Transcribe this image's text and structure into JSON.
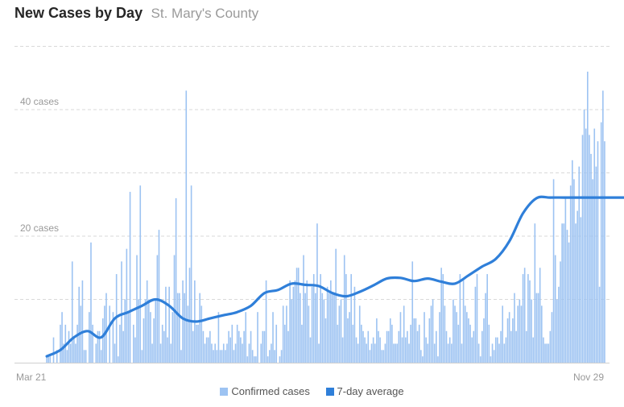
{
  "header": {
    "title": "New Cases by Day",
    "subtitle": "St. Mary's County"
  },
  "colors": {
    "bar": "#9dc3f2",
    "line": "#2f7fd9",
    "grid": "#d9d9d9",
    "axis": "#cfcfcf",
    "label": "#999999"
  },
  "legend": [
    {
      "label": "Confirmed cases",
      "icon": "square-swatch",
      "color": "#9dc3f2"
    },
    {
      "label": "7-day average",
      "icon": "square-swatch",
      "color": "#2f7fd9"
    }
  ],
  "chart_data": {
    "type": "bar",
    "title": "New Cases by Day",
    "subtitle": "St. Mary's County",
    "x_start_label": "Mar 21",
    "x_end_label": "Nov 29",
    "y_tick_labels": [
      "20 cases",
      "40 cases"
    ],
    "y_ticks": [
      20,
      40
    ],
    "ylim": [
      0,
      50
    ],
    "grid": true,
    "legend_position": "bottom",
    "series": [
      {
        "name": "Confirmed cases",
        "kind": "bar",
        "values": [
          1,
          1,
          1,
          0,
          4,
          0,
          2,
          0,
          6,
          8,
          3,
          6,
          2,
          5,
          3,
          16,
          4,
          3,
          6,
          12,
          9,
          13,
          2,
          2,
          0,
          8,
          19,
          6,
          0,
          3,
          5,
          5,
          2,
          7,
          9,
          11,
          0,
          9,
          0,
          8,
          3,
          14,
          1,
          6,
          16,
          5,
          10,
          18,
          8,
          27,
          0,
          6,
          4,
          17,
          10,
          28,
          2,
          7,
          10,
          13,
          10,
          8,
          3,
          7,
          10,
          17,
          21,
          3,
          6,
          5,
          12,
          4,
          12,
          3,
          8,
          17,
          26,
          11,
          11,
          2,
          13,
          11,
          43,
          9,
          15,
          28,
          5,
          13,
          6,
          6,
          11,
          9,
          5,
          3,
          4,
          4,
          5,
          3,
          2,
          3,
          2,
          8,
          2,
          2,
          3,
          2,
          3,
          5,
          4,
          6,
          2,
          3,
          6,
          5,
          4,
          3,
          5,
          8,
          1,
          3,
          5,
          2,
          1,
          1,
          8,
          0,
          3,
          5,
          5,
          13,
          1,
          2,
          3,
          8,
          2,
          6,
          0,
          1,
          2,
          9,
          6,
          9,
          5,
          13,
          10,
          12,
          13,
          15,
          15,
          11,
          6,
          17,
          11,
          13,
          9,
          4,
          12,
          14,
          11,
          22,
          3,
          14,
          11,
          10,
          7,
          12,
          11,
          13,
          11,
          11,
          18,
          6,
          9,
          10,
          4,
          17,
          14,
          7,
          8,
          14,
          6,
          12,
          4,
          3,
          9,
          6,
          5,
          4,
          3,
          5,
          2,
          3,
          4,
          3,
          7,
          5,
          4,
          2,
          2,
          3,
          5,
          5,
          7,
          6,
          3,
          3,
          3,
          5,
          8,
          4,
          9,
          4,
          5,
          3,
          6,
          16,
          7,
          7,
          5,
          6,
          2,
          1,
          8,
          4,
          3,
          7,
          9,
          10,
          3,
          5,
          1,
          8,
          15,
          14,
          9,
          5,
          3,
          4,
          3,
          10,
          9,
          8,
          6,
          14,
          3,
          13,
          9,
          8,
          7,
          6,
          4,
          5,
          12,
          14,
          3,
          1,
          5,
          7,
          11,
          14,
          6,
          1,
          3,
          2,
          4,
          4,
          3,
          5,
          9,
          3,
          4,
          7,
          8,
          5,
          7,
          11,
          5,
          9,
          10,
          9,
          14,
          15,
          5,
          14,
          13,
          10,
          4,
          22,
          11,
          11,
          15,
          9,
          4,
          3,
          3,
          3,
          5,
          8,
          29,
          17,
          10,
          12,
          16,
          22,
          22,
          26,
          21,
          19,
          28,
          32,
          29,
          22,
          24,
          31,
          23,
          36,
          40,
          37,
          46,
          36,
          33,
          29,
          37,
          31,
          35,
          12,
          38,
          43,
          35
        ]
      },
      {
        "name": "7-day average",
        "kind": "line",
        "x_index": [
          0,
          8,
          16,
          24,
          32,
          40,
          48,
          56,
          64,
          72,
          80,
          88,
          96,
          104,
          112,
          120,
          128,
          136,
          144,
          152,
          160,
          168,
          176,
          184,
          192,
          200,
          208,
          216,
          224,
          232,
          240,
          248,
          256,
          264,
          272,
          280,
          288,
          296,
          304,
          312,
          320,
          328,
          336,
          341
        ],
        "values": [
          1,
          2,
          4,
          5,
          4,
          7,
          8,
          9,
          10,
          9,
          7,
          6.5,
          7,
          7.5,
          8,
          9,
          11,
          11.5,
          12.5,
          12.3,
          12.1,
          11,
          10.5,
          11.2,
          12.2,
          13.3,
          13.4,
          12.9,
          13.3,
          12.8,
          12.5,
          13.8,
          15.2,
          16.4,
          19.2,
          23.6,
          26,
          26.1,
          26.1,
          26.1,
          26.1,
          26.1,
          26.1,
          26.1
        ]
      }
    ]
  }
}
